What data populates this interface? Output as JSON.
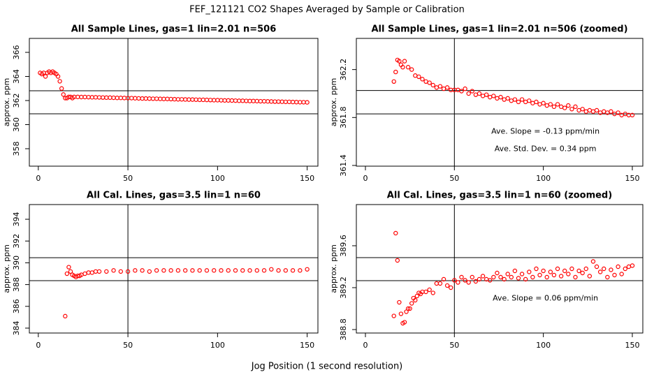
{
  "title": "FEF_121121  CO2 Shapes Averaged by Sample or Calibration",
  "x_label": "Jog Position (1 second resolution)",
  "chart_data": [
    {
      "type": "scatter",
      "title": "All Sample Lines, gas=1 lin=2.01 n=506",
      "y_label": "approx. ppm",
      "color": "#ff0000",
      "xlim": [
        -5,
        156
      ],
      "xticks": [
        0,
        50,
        100,
        150
      ],
      "ylim": [
        356.55,
        367.16
      ],
      "yticks": [
        358,
        360,
        362,
        364,
        366
      ],
      "hlines": [
        362.81,
        360.9
      ],
      "vlines": [
        50
      ],
      "annotations": [],
      "x": [
        1,
        2,
        3,
        4,
        5,
        6,
        7,
        8,
        9,
        10,
        11,
        12,
        13,
        14,
        15,
        16,
        17,
        18,
        19,
        20,
        22,
        24,
        26,
        28,
        30,
        32,
        34,
        36,
        38,
        40,
        42,
        44,
        46,
        48,
        50,
        52,
        54,
        56,
        58,
        60,
        62,
        64,
        66,
        68,
        70,
        72,
        74,
        76,
        78,
        80,
        82,
        84,
        86,
        88,
        90,
        92,
        94,
        96,
        98,
        100,
        102,
        104,
        106,
        108,
        110,
        112,
        114,
        116,
        118,
        120,
        122,
        124,
        126,
        128,
        130,
        132,
        134,
        136,
        138,
        140,
        142,
        144,
        146,
        148,
        150
      ],
      "values": [
        364.3,
        364.2,
        364.3,
        364.0,
        364.3,
        364.4,
        364.3,
        364.4,
        364.3,
        364.2,
        364.0,
        363.6,
        363.0,
        362.5,
        362.2,
        362.2,
        362.3,
        362.3,
        362.2,
        362.3,
        362.3,
        362.29,
        362.29,
        362.28,
        362.27,
        362.27,
        362.26,
        362.25,
        362.24,
        362.24,
        362.23,
        362.22,
        362.22,
        362.21,
        362.2,
        362.2,
        362.19,
        362.18,
        362.17,
        362.17,
        362.16,
        362.15,
        362.15,
        362.14,
        362.13,
        362.13,
        362.12,
        362.11,
        362.1,
        362.1,
        362.09,
        362.08,
        362.08,
        362.07,
        362.06,
        362.06,
        362.05,
        362.04,
        362.03,
        362.03,
        362.02,
        362.01,
        362.01,
        362.0,
        361.99,
        361.98,
        361.98,
        361.97,
        361.96,
        361.96,
        361.95,
        361.94,
        361.94,
        361.93,
        361.92,
        361.91,
        361.91,
        361.9,
        361.89,
        361.89,
        361.88,
        361.87,
        361.86,
        361.86,
        361.85
      ]
    },
    {
      "type": "scatter",
      "title": "All Sample Lines, gas=1 lin=2.01 n=506 (zoomed)",
      "y_label": "approx. ppm",
      "color": "#ff0000",
      "xlim": [
        -5.1,
        155.9
      ],
      "xticks": [
        0,
        50,
        100,
        150
      ],
      "ylim": [
        361.394,
        362.46
      ],
      "yticks": [
        361.4,
        361.8,
        362.2
      ],
      "hlines": [
        362.025,
        361.83
      ],
      "vlines": [
        50
      ],
      "annotations": [
        "Ave. Slope =  -0.13  ppm/min",
        "Ave. Std. Dev. =  0.34  ppm"
      ],
      "x": [
        16,
        17,
        18,
        19,
        20,
        21,
        22,
        24,
        26,
        28,
        30,
        32,
        34,
        36,
        38,
        40,
        42,
        44,
        46,
        48,
        50,
        52,
        54,
        56,
        58,
        60,
        62,
        64,
        66,
        68,
        70,
        72,
        74,
        76,
        78,
        80,
        82,
        84,
        86,
        88,
        90,
        92,
        94,
        96,
        98,
        100,
        102,
        104,
        106,
        108,
        110,
        112,
        114,
        116,
        118,
        120,
        122,
        124,
        126,
        128,
        130,
        132,
        134,
        136,
        138,
        140,
        142,
        144,
        146,
        148,
        150
      ],
      "values": [
        362.1,
        362.18,
        362.28,
        362.27,
        362.24,
        362.22,
        362.27,
        362.22,
        362.2,
        362.15,
        362.14,
        362.12,
        362.1,
        362.09,
        362.07,
        362.05,
        362.06,
        362.04,
        362.05,
        362.03,
        362.03,
        362.03,
        362.02,
        362.04,
        362.0,
        362.02,
        361.99,
        362.0,
        361.98,
        361.99,
        361.97,
        361.98,
        361.96,
        361.97,
        361.95,
        361.96,
        361.94,
        361.95,
        361.93,
        361.95,
        361.93,
        361.94,
        361.92,
        361.93,
        361.91,
        361.92,
        361.9,
        361.91,
        361.89,
        361.91,
        361.89,
        361.88,
        361.9,
        361.87,
        361.89,
        361.86,
        361.87,
        361.85,
        361.86,
        361.85,
        361.86,
        361.84,
        361.85,
        361.84,
        361.85,
        361.83,
        361.84,
        361.82,
        361.83,
        361.82,
        361.82
      ]
    },
    {
      "type": "scatter",
      "title": "All Cal. Lines, gas=3.5 lin=1 n=60",
      "y_label": "approx. ppm",
      "color": "#ff0000",
      "xlim": [
        -5,
        156
      ],
      "xticks": [
        0,
        50,
        100,
        150
      ],
      "ylim": [
        383.55,
        395.35
      ],
      "yticks": [
        384,
        386,
        388,
        390,
        392,
        394
      ],
      "hlines": [
        390.47,
        388.36
      ],
      "vlines": [
        50
      ],
      "annotations": [],
      "x": [
        15,
        16,
        17,
        18,
        19,
        20,
        21,
        22,
        23,
        24,
        26,
        28,
        30,
        32,
        34,
        38,
        42,
        46,
        50,
        54,
        58,
        62,
        66,
        70,
        74,
        78,
        82,
        86,
        90,
        94,
        98,
        102,
        106,
        110,
        114,
        118,
        122,
        126,
        130,
        134,
        138,
        142,
        146,
        150
      ],
      "values": [
        385.1,
        389.0,
        389.6,
        389.2,
        388.9,
        388.8,
        388.7,
        388.8,
        388.8,
        388.9,
        389.0,
        389.1,
        389.1,
        389.2,
        389.2,
        389.2,
        389.3,
        389.2,
        389.2,
        389.3,
        389.3,
        389.2,
        389.3,
        389.3,
        389.3,
        389.3,
        389.3,
        389.3,
        389.3,
        389.3,
        389.3,
        389.3,
        389.3,
        389.3,
        389.3,
        389.3,
        389.3,
        389.3,
        389.4,
        389.3,
        389.3,
        389.3,
        389.3,
        389.4
      ]
    },
    {
      "type": "scatter",
      "title": "All Cal. Lines, gas=3.5 lin=1 n=60 (zoomed)",
      "y_label": "approx. ppm",
      "color": "#ff0000",
      "xlim": [
        -5.1,
        155.9
      ],
      "xticks": [
        0,
        50,
        100,
        150
      ],
      "ylim": [
        388.767,
        389.993
      ],
      "yticks": [
        388.8,
        389.2,
        389.6
      ],
      "hlines": [
        389.487,
        389.267
      ],
      "vlines": [
        50
      ],
      "annotations": [
        "Ave. Slope =  0.06  ppm/min"
      ],
      "x": [
        16,
        17,
        18,
        19,
        20,
        21,
        22,
        23,
        24,
        25,
        26,
        27,
        28,
        29,
        30,
        31,
        32,
        34,
        36,
        38,
        40,
        42,
        44,
        46,
        48,
        50,
        52,
        54,
        56,
        58,
        60,
        62,
        64,
        66,
        68,
        70,
        72,
        74,
        76,
        78,
        80,
        82,
        84,
        86,
        88,
        90,
        92,
        94,
        96,
        98,
        100,
        102,
        104,
        106,
        108,
        110,
        112,
        114,
        116,
        118,
        120,
        122,
        124,
        126,
        128,
        130,
        132,
        134,
        136,
        138,
        140,
        142,
        144,
        146,
        148,
        150
      ],
      "values": [
        388.93,
        389.72,
        389.46,
        389.06,
        388.95,
        388.86,
        388.87,
        388.97,
        389.0,
        389.0,
        389.05,
        389.1,
        389.08,
        389.12,
        389.15,
        389.14,
        389.16,
        389.16,
        389.18,
        389.15,
        389.24,
        389.24,
        389.28,
        389.22,
        389.2,
        389.27,
        389.25,
        389.3,
        389.27,
        389.25,
        389.3,
        389.26,
        389.28,
        389.31,
        389.28,
        389.27,
        389.3,
        389.34,
        389.3,
        389.28,
        389.33,
        389.3,
        389.36,
        389.29,
        389.33,
        389.28,
        389.35,
        389.3,
        389.38,
        389.32,
        389.36,
        389.3,
        389.35,
        389.32,
        389.38,
        389.31,
        389.36,
        389.33,
        389.38,
        389.3,
        389.36,
        389.34,
        389.38,
        389.31,
        389.45,
        389.4,
        389.35,
        389.38,
        389.3,
        389.37,
        389.32,
        389.4,
        389.33,
        389.38,
        389.4,
        389.41
      ]
    }
  ]
}
